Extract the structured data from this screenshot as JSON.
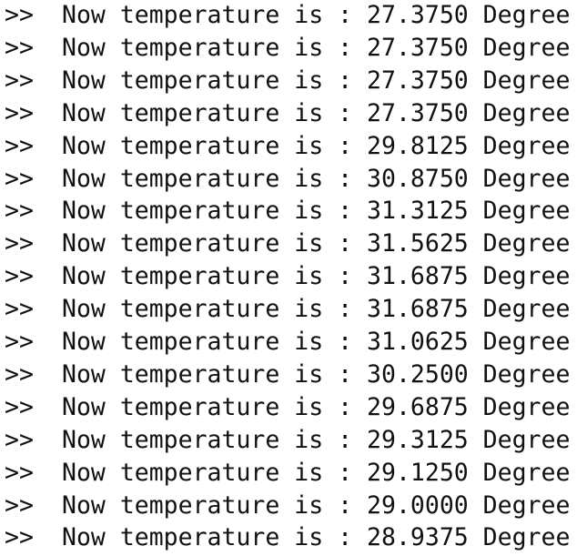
{
  "lines": [
    {
      "prompt": ">>",
      "message": "Now temperature is : 27.3750 Degree"
    },
    {
      "prompt": ">>",
      "message": "Now temperature is : 27.3750 Degree"
    },
    {
      "prompt": ">>",
      "message": "Now temperature is : 27.3750 Degree"
    },
    {
      "prompt": ">>",
      "message": "Now temperature is : 27.3750 Degree"
    },
    {
      "prompt": ">>",
      "message": "Now temperature is : 29.8125 Degree"
    },
    {
      "prompt": ">>",
      "message": "Now temperature is : 30.8750 Degree"
    },
    {
      "prompt": ">>",
      "message": "Now temperature is : 31.3125 Degree"
    },
    {
      "prompt": ">>",
      "message": "Now temperature is : 31.5625 Degree"
    },
    {
      "prompt": ">>",
      "message": "Now temperature is : 31.6875 Degree"
    },
    {
      "prompt": ">>",
      "message": "Now temperature is : 31.6875 Degree"
    },
    {
      "prompt": ">>",
      "message": "Now temperature is : 31.0625 Degree"
    },
    {
      "prompt": ">>",
      "message": "Now temperature is : 30.2500 Degree"
    },
    {
      "prompt": ">>",
      "message": "Now temperature is : 29.6875 Degree"
    },
    {
      "prompt": ">>",
      "message": "Now temperature is : 29.3125 Degree"
    },
    {
      "prompt": ">>",
      "message": "Now temperature is : 29.1250 Degree"
    },
    {
      "prompt": ">>",
      "message": "Now temperature is : 29.0000 Degree"
    },
    {
      "prompt": ">>",
      "message": "Now temperature is : 28.9375 Degree"
    }
  ]
}
